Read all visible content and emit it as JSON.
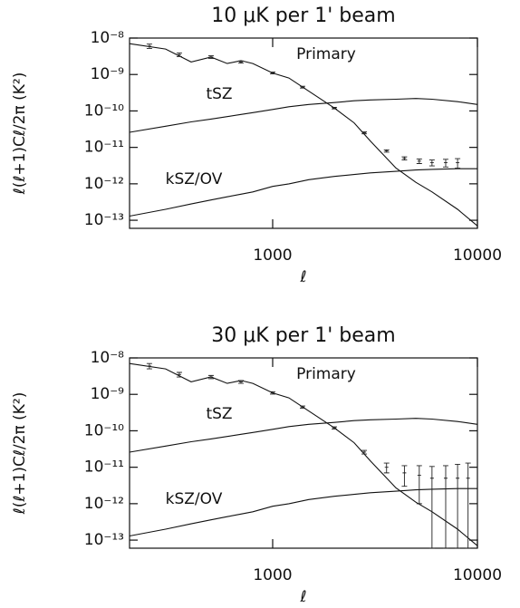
{
  "chart_data": [
    {
      "type": "line",
      "title": "10 μK per 1' beam",
      "x_label": "ℓ",
      "y_label": "ℓ(ℓ+1)Cℓ/2π (K²)",
      "log_x": true,
      "log_y": true,
      "xlim": [
        200,
        10000
      ],
      "ylim": [
        6e-14,
        1e-08
      ],
      "xticks": [
        1000,
        10000
      ],
      "yticks": [
        {
          "value": 1e-08,
          "label": "10⁻⁸"
        },
        {
          "value": 1e-09,
          "label": "10⁻⁹"
        },
        {
          "value": 1e-10,
          "label": "10⁻¹⁰"
        },
        {
          "value": 1e-11,
          "label": "10⁻¹¹"
        },
        {
          "value": 1e-12,
          "label": "10⁻¹²"
        },
        {
          "value": 1e-13,
          "label": "10⁻¹³"
        }
      ],
      "x": [
        200,
        300,
        400,
        500,
        600,
        700,
        800,
        1000,
        1200,
        1500,
        2000,
        2500,
        3000,
        4000,
        5000,
        6000,
        8000,
        10000
      ],
      "series": [
        {
          "name": "Primary",
          "color": "#111111",
          "values": [
            7e-09,
            5e-09,
            2.2e-09,
            3e-09,
            2e-09,
            2.4e-09,
            2e-09,
            1.1e-09,
            8e-10,
            3.5e-10,
            1.2e-10,
            4.7e-11,
            1.5e-11,
            2.7e-12,
            1.1e-12,
            6e-13,
            2e-13,
            7e-14
          ]
        },
        {
          "name": "tSZ",
          "color": "#111111",
          "values": [
            2.6e-11,
            3.8e-11,
            5e-11,
            6e-11,
            7e-11,
            8e-11,
            9e-11,
            1.1e-10,
            1.3e-10,
            1.5e-10,
            1.7e-10,
            1.9e-10,
            2e-10,
            2.1e-10,
            2.2e-10,
            2.1e-10,
            1.8e-10,
            1.5e-10
          ]
        },
        {
          "name": "kSZ/OV",
          "color": "#111111",
          "values": [
            1.3e-13,
            2e-13,
            2.8e-13,
            3.6e-13,
            4.4e-13,
            5.2e-13,
            6e-13,
            8.5e-13,
            1e-12,
            1.3e-12,
            1.6e-12,
            1.8e-12,
            2e-12,
            2.2e-12,
            2.4e-12,
            2.5e-12,
            2.6e-12,
            2.6e-12
          ]
        }
      ],
      "points": {
        "x": [
          250,
          350,
          500,
          700,
          1000,
          1400,
          2000,
          2800,
          3600,
          4400,
          5200,
          6000,
          7000,
          8000
        ],
        "values": [
          6e-09,
          3.5e-09,
          3e-09,
          2.2e-09,
          1.1e-09,
          4.5e-10,
          1.2e-10,
          2.5e-11,
          8e-12,
          5e-12,
          4.2e-12,
          3.8e-12,
          3.8e-12,
          3.8e-12
        ],
        "errors": [
          8e-10,
          4e-10,
          2.5e-10,
          1.5e-10,
          6e-11,
          2.5e-11,
          6e-12,
          1.5e-12,
          6e-13,
          5e-13,
          6e-13,
          7e-13,
          9e-13,
          1.1e-12
        ]
      }
    },
    {
      "type": "line",
      "title": "30 μK per 1' beam",
      "x_label": "ℓ",
      "y_label": "ℓ(ℓ+1)Cℓ/2π (K²)",
      "log_x": true,
      "log_y": true,
      "xlim": [
        200,
        10000
      ],
      "ylim": [
        6e-14,
        1e-08
      ],
      "xticks": [
        1000,
        10000
      ],
      "yticks": [
        {
          "value": 1e-08,
          "label": "10⁻⁸"
        },
        {
          "value": 1e-09,
          "label": "10⁻⁹"
        },
        {
          "value": 1e-10,
          "label": "10⁻¹⁰"
        },
        {
          "value": 1e-11,
          "label": "10⁻¹¹"
        },
        {
          "value": 1e-12,
          "label": "10⁻¹²"
        },
        {
          "value": 1e-13,
          "label": "10⁻¹³"
        }
      ],
      "x": [
        200,
        300,
        400,
        500,
        600,
        700,
        800,
        1000,
        1200,
        1500,
        2000,
        2500,
        3000,
        4000,
        5000,
        6000,
        8000,
        10000
      ],
      "series": [
        {
          "name": "Primary",
          "color": "#111111",
          "values": [
            7e-09,
            5e-09,
            2.2e-09,
            3e-09,
            2e-09,
            2.4e-09,
            2e-09,
            1.1e-09,
            8e-10,
            3.5e-10,
            1.2e-10,
            4.7e-11,
            1.5e-11,
            2.7e-12,
            1.1e-12,
            6e-13,
            2e-13,
            7e-14
          ]
        },
        {
          "name": "tSZ",
          "color": "#111111",
          "values": [
            2.6e-11,
            3.8e-11,
            5e-11,
            6e-11,
            7e-11,
            8e-11,
            9e-11,
            1.1e-10,
            1.3e-10,
            1.5e-10,
            1.7e-10,
            1.9e-10,
            2e-10,
            2.1e-10,
            2.2e-10,
            2.1e-10,
            1.8e-10,
            1.5e-10
          ]
        },
        {
          "name": "kSZ/OV",
          "color": "#111111",
          "values": [
            1.3e-13,
            2e-13,
            2.8e-13,
            3.6e-13,
            4.4e-13,
            5.2e-13,
            6e-13,
            8.5e-13,
            1e-12,
            1.3e-12,
            1.6e-12,
            1.8e-12,
            2e-12,
            2.2e-12,
            2.4e-12,
            2.5e-12,
            2.6e-12,
            2.6e-12
          ]
        }
      ],
      "points": {
        "x": [
          250,
          350,
          500,
          700,
          1000,
          1400,
          2000,
          2800,
          3600,
          4400,
          5200,
          6000,
          7000,
          8000,
          9000
        ],
        "values": [
          6e-09,
          3.5e-09,
          3e-09,
          2.2e-09,
          1.1e-09,
          4.5e-10,
          1.2e-10,
          2.6e-11,
          1e-11,
          7e-12,
          6e-12,
          5e-12,
          5e-12,
          5e-12,
          5e-12
        ],
        "errors": [
          1e-09,
          5e-10,
          3e-10,
          2e-10,
          8e-11,
          3e-11,
          8e-12,
          3e-12,
          3e-12,
          4e-12,
          5e-12,
          5.5e-12,
          6e-12,
          7e-12,
          8e-12
        ]
      }
    }
  ]
}
